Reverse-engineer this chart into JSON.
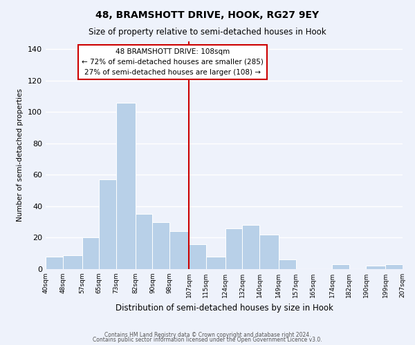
{
  "title": "48, BRAMSHOTT DRIVE, HOOK, RG27 9EY",
  "subtitle": "Size of property relative to semi-detached houses in Hook",
  "xlabel": "Distribution of semi-detached houses by size in Hook",
  "ylabel": "Number of semi-detached properties",
  "bin_labels": [
    "40sqm",
    "48sqm",
    "57sqm",
    "65sqm",
    "73sqm",
    "82sqm",
    "90sqm",
    "98sqm",
    "107sqm",
    "115sqm",
    "124sqm",
    "132sqm",
    "140sqm",
    "149sqm",
    "157sqm",
    "165sqm",
    "174sqm",
    "182sqm",
    "190sqm",
    "199sqm",
    "207sqm"
  ],
  "bar_values": [
    8,
    9,
    20,
    57,
    106,
    35,
    30,
    24,
    16,
    8,
    26,
    28,
    22,
    6,
    0,
    0,
    3,
    0,
    2,
    3
  ],
  "bin_edges": [
    40,
    48,
    57,
    65,
    73,
    82,
    90,
    98,
    107,
    115,
    124,
    132,
    140,
    149,
    157,
    165,
    174,
    182,
    190,
    199,
    207
  ],
  "bar_color": "#b8d0e8",
  "bar_edgecolor": "#9ab8d8",
  "vline_x": 107,
  "vline_color": "#cc0000",
  "annotation_title": "48 BRAMSHOTT DRIVE: 108sqm",
  "annotation_line1": "← 72% of semi-detached houses are smaller (285)",
  "annotation_line2": "27% of semi-detached houses are larger (108) →",
  "annotation_box_edgecolor": "#cc0000",
  "annotation_box_facecolor": "#ffffff",
  "ylim": [
    0,
    145
  ],
  "background_color": "#eef2fb",
  "grid_color": "#ffffff",
  "footer1": "Contains HM Land Registry data © Crown copyright and database right 2024.",
  "footer2": "Contains public sector information licensed under the Open Government Licence v3.0."
}
